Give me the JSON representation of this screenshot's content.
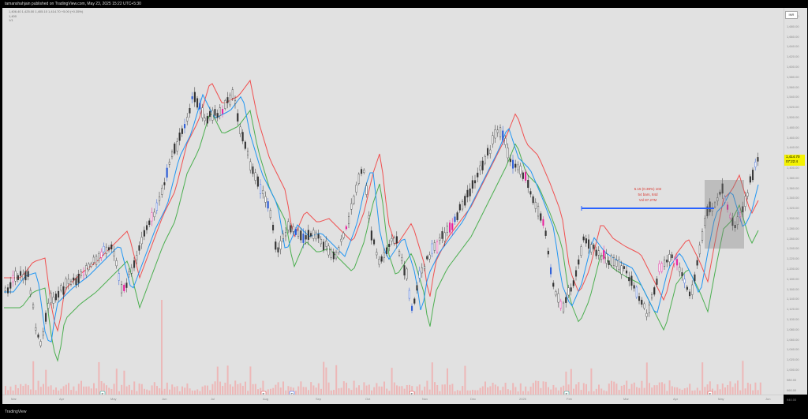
{
  "header": {
    "published": "tamanshahjain published on TradingView.com, May 23, 2025 15:22 UTC+5:30",
    "ohlc": "1,406.40   1,425.00   1,405.10   1,414.70  +5.00 (+0.35%)",
    "legend_lines": [
      "1,400",
      "1/1"
    ]
  },
  "toolbar": {
    "timeframe_button": "INR"
  },
  "price_axis": {
    "ticks": [
      "1,700.00",
      "1,680.00",
      "1,660.00",
      "1,640.00",
      "1,620.00",
      "1,600.00",
      "1,580.00",
      "1,560.00",
      "1,540.00",
      "1,520.00",
      "1,500.00",
      "1,480.00",
      "1,460.00",
      "1,440.00",
      "1,420.00",
      "1,400.00",
      "1,380.00",
      "1,360.00",
      "1,340.00",
      "1,320.00",
      "1,300.00",
      "1,280.00",
      "1,260.00",
      "1,240.00",
      "1,220.00",
      "1,200.00",
      "1,180.00",
      "1,160.00",
      "1,140.00",
      "1,120.00",
      "1,100.00",
      "1,080.00",
      "1,060.00",
      "1,040.00",
      "1,020.00",
      "1,000.00",
      "980.00",
      "960.00",
      "940.00"
    ],
    "current_price": "1,414.70",
    "countdown": "07:22:4"
  },
  "time_axis": {
    "labels": [
      "Mar",
      "Apr",
      "May",
      "Jun",
      "Jul",
      "Aug",
      "Sep",
      "Oct",
      "Nov",
      "Dec",
      "2025",
      "Feb",
      "Mar",
      "Apr",
      "May",
      "Jun"
    ]
  },
  "measure": {
    "line1": "5.15 (0.39%) 102",
    "line2": "54 bars, 84d",
    "line3": "Vol 87.27M"
  },
  "markers": [
    "E",
    "E",
    "D",
    "E",
    "E",
    "E"
  ],
  "footer": {
    "logo_text": "TradingView"
  },
  "colors": {
    "chart_bg": "#e1e1e1",
    "band_red": "#f05050",
    "band_green": "#4caf50",
    "mid_blue": "#2196f3",
    "candle_dark": "#333333",
    "candle_pink": "#e91e9d",
    "candle_blue": "#2a5bd7",
    "volume": "#f0a8a8",
    "measure_line": "#2962ff"
  }
}
